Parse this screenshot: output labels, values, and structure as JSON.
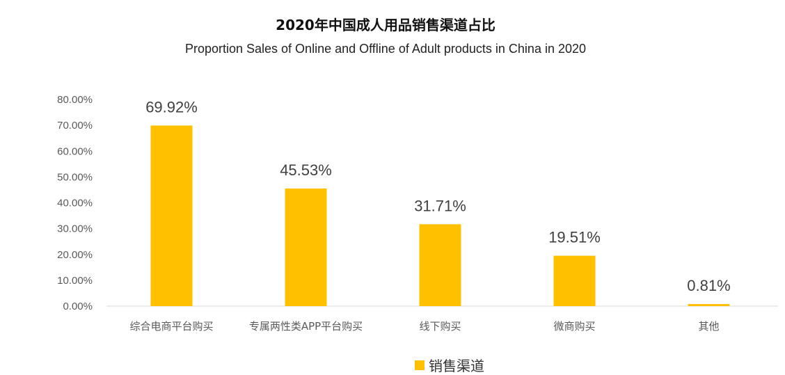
{
  "chart_data": {
    "type": "bar",
    "title": "2020年中国成人用品销售渠道占比",
    "subtitle": "Proportion Sales of Online and Offline of Adult products in China in 2020",
    "categories": [
      "综合电商平台购买",
      "专属两性类APP平台购买",
      "线下购买",
      "微商购买",
      "其他"
    ],
    "values": [
      69.92,
      45.53,
      31.71,
      19.51,
      0.81
    ],
    "data_labels": [
      "69.92%",
      "45.53%",
      "31.71%",
      "19.51%",
      "0.81%"
    ],
    "yticks": [
      "0.00%",
      "10.00%",
      "20.00%",
      "30.00%",
      "40.00%",
      "50.00%",
      "60.00%",
      "70.00%",
      "80.00%"
    ],
    "ylim": [
      0,
      80
    ],
    "xlabel": "",
    "ylabel": "",
    "grid": false,
    "legend": {
      "entries": [
        "销售渠道"
      ],
      "placement": "bottom"
    },
    "colors": {
      "bar": "#FFC000",
      "axis": "#D9D9D9",
      "text": "#595959"
    }
  }
}
